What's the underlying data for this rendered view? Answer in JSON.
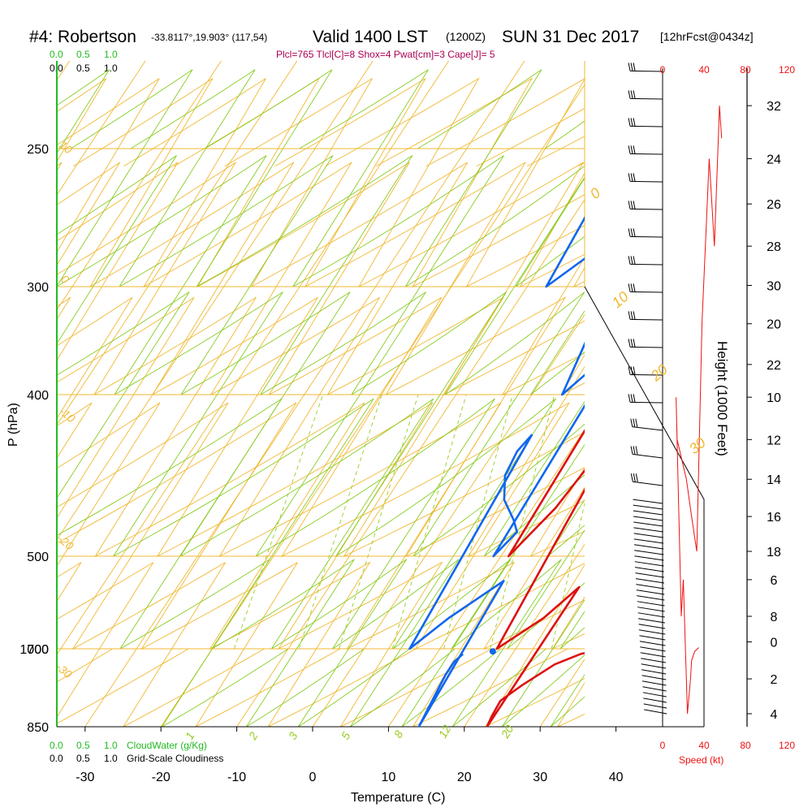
{
  "header": {
    "station": "#4: Robertson",
    "coords": "-33.8117°,19.903° (117,54)",
    "valid": "Valid 1400 LST",
    "utc": "(1200Z)",
    "date": "SUN 31 Dec 2017",
    "forecast": "[12hrFcst@0434z]"
  },
  "indices": "Plcl=765 Tlcl[C]=8 Shox=4 Pwat[cm]=3 Cape[J]= 5",
  "cloud_scale_top": [
    "0.0",
    "0.5",
    "1.0"
  ],
  "cloud_scale_bottom": [
    "0.0",
    "0.5",
    "1.0"
  ],
  "cloudwater_label": "CloudWater (g/Kg)",
  "cloudiness_label": "Grid-Scale Cloudiness",
  "speed_ticks": [
    "0",
    "40",
    "80",
    "120"
  ],
  "speed_label": "Speed (kt)",
  "colors": {
    "temperature": "#dd1111",
    "dewpoint": "#1166ee",
    "isobar_isotherm": "#f0b830",
    "mixing_ratio": "#99cc22",
    "moist_adiabat": "#88cc22",
    "cloud": "#22bb22",
    "speed": "#ee1111"
  },
  "chart_data": {
    "type": "line",
    "title": "#4: Robertson",
    "xlabel": "Temperature (C)",
    "ylabel": "P (hPa)",
    "y2label": "Height (1000 Feet)",
    "x_ticks": [
      -30,
      -20,
      -10,
      0,
      10,
      20,
      30,
      40
    ],
    "p_ticks": [
      250,
      300,
      400,
      500,
      700,
      850,
      1000
    ],
    "height_ticks": [
      0,
      2,
      4,
      6,
      8,
      10,
      12,
      14,
      16,
      18,
      20,
      22,
      24,
      26,
      28,
      30,
      32
    ],
    "isotherm_labels": [
      -40,
      -30,
      -20,
      -10,
      0,
      10,
      20,
      30
    ],
    "dry_adiabat_labels": [
      10,
      0,
      -10,
      -20,
      -30
    ],
    "mixing_ratio_labels": [
      "1",
      "2",
      "3",
      "5",
      "8",
      "12",
      "20"
    ],
    "series": [
      {
        "name": "Temperature",
        "points": [
          [
            1000,
            31.8
          ],
          [
            990,
            29.0
          ],
          [
            970,
            26.5
          ],
          [
            930,
            24.0
          ],
          [
            900,
            22.5
          ],
          [
            870,
            22.7
          ],
          [
            850,
            23.0
          ],
          [
            800,
            23.0
          ],
          [
            750,
            21.0
          ],
          [
            700,
            17.5
          ],
          [
            650,
            14.5
          ],
          [
            620,
            13.8
          ],
          [
            600,
            13.5
          ],
          [
            560,
            13.0
          ],
          [
            500,
            11.0
          ],
          [
            450,
            9.5
          ],
          [
            400,
            7.5
          ],
          [
            350,
            5.0
          ],
          [
            300,
            1.0
          ],
          [
            260,
            -2.2
          ]
        ]
      },
      {
        "name": "Dewpoint",
        "points": [
          [
            990,
            13.5
          ],
          [
            975,
            13.0
          ],
          [
            950,
            13.0
          ],
          [
            900,
            13.5
          ],
          [
            850,
            14.0
          ],
          [
            810,
            12.5
          ],
          [
            780,
            10.5
          ],
          [
            750,
            8.5
          ],
          [
            700,
            6.0
          ],
          [
            650,
            3.5
          ],
          [
            630,
            3.0
          ],
          [
            600,
            3.5
          ],
          [
            570,
            5.5
          ],
          [
            545,
            8.5
          ],
          [
            530,
            10.0
          ],
          [
            500,
            9.0
          ],
          [
            450,
            7.5
          ],
          [
            400,
            4.0
          ],
          [
            350,
            -1.0
          ],
          [
            300,
            -7.5
          ],
          [
            280,
            -10.0
          ],
          [
            260,
            -12.0
          ]
        ]
      }
    ],
    "surface_temperature": 31.8,
    "surface_dewpoint": 17.2,
    "surface_pressure": 995,
    "wind_speed_profile": [
      [
        0.3,
        35
      ],
      [
        0.5,
        31
      ],
      [
        1,
        28
      ],
      [
        2,
        27
      ],
      [
        4,
        24
      ],
      [
        6,
        20
      ],
      [
        8,
        18
      ],
      [
        10,
        13
      ],
      [
        12,
        14
      ],
      [
        14,
        23
      ],
      [
        16,
        28
      ],
      [
        18,
        33
      ],
      [
        20,
        38
      ],
      [
        24,
        45
      ],
      [
        28,
        50
      ],
      [
        32,
        55
      ],
      [
        33.5,
        57
      ]
    ]
  }
}
